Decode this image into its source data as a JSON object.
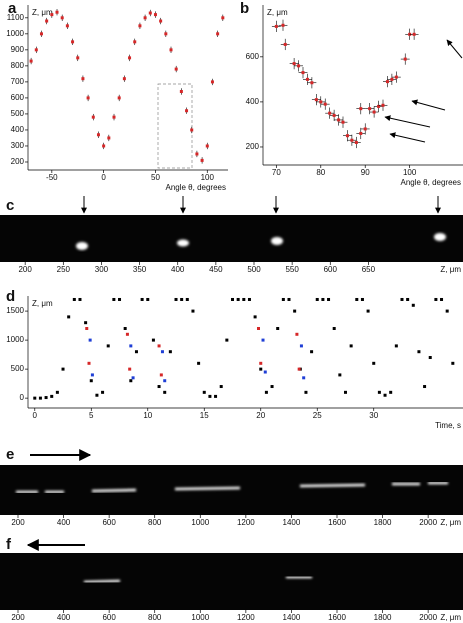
{
  "chart_data": [
    {
      "type": "scatter",
      "label": "a",
      "xlabel": "Angle θ, degrees",
      "ylabel": "Z, μm",
      "color": "#d62728",
      "x": [
        -70,
        -65,
        -60,
        -55,
        -50,
        -45,
        -40,
        -35,
        -30,
        -25,
        -20,
        -15,
        -10,
        -5,
        0,
        5,
        10,
        15,
        20,
        25,
        30,
        35,
        40,
        45,
        50,
        55,
        60,
        65,
        70,
        75,
        80,
        85,
        90,
        95,
        100,
        105,
        110,
        115
      ],
      "values": [
        830,
        900,
        1000,
        1080,
        1120,
        1135,
        1100,
        1050,
        950,
        850,
        720,
        600,
        480,
        370,
        300,
        350,
        480,
        600,
        720,
        850,
        950,
        1050,
        1100,
        1130,
        1120,
        1080,
        1000,
        900,
        780,
        640,
        520,
        400,
        250,
        210,
        300,
        700,
        1000,
        1100
      ],
      "yerr": 20,
      "xlim": [
        -73,
        120
      ],
      "ylim": [
        150,
        1180
      ],
      "xticks": [
        -50,
        0,
        50,
        100
      ],
      "yticks": [
        200,
        300,
        400,
        500,
        600,
        700,
        800,
        900,
        1000,
        1100
      ]
    },
    {
      "type": "scatter",
      "label": "b",
      "xlabel": "Angle θ, degrees",
      "ylabel": "Z, μm",
      "color": "#d62728",
      "x": [
        70,
        71.5,
        72,
        74,
        75,
        76,
        77,
        78,
        79,
        80,
        81,
        82,
        83,
        84,
        85,
        86,
        87,
        88,
        89,
        89,
        90,
        91,
        92,
        93,
        94,
        95,
        96,
        97,
        99,
        100,
        101
      ],
      "values": [
        735,
        740,
        655,
        570,
        560,
        530,
        500,
        485,
        410,
        400,
        390,
        350,
        340,
        320,
        310,
        250,
        230,
        220,
        370,
        260,
        280,
        370,
        355,
        380,
        385,
        490,
        500,
        510,
        590,
        700,
        700
      ],
      "yerr": 25,
      "xerr": 1,
      "xlim": [
        67,
        112
      ],
      "ylim": [
        120,
        830
      ],
      "xticks": [
        70,
        80,
        90,
        100
      ],
      "yticks": [
        200,
        400,
        600
      ]
    },
    {
      "type": "image",
      "label": "c",
      "xlabel": "Z, μm",
      "xlim": [
        167,
        774
      ],
      "xticks": [
        200,
        250,
        300,
        350,
        400,
        450,
        500,
        550,
        600,
        650
      ]
    },
    {
      "type": "scatter",
      "label": "d",
      "xlabel": "Time, s",
      "ylabel": "Z, μm",
      "series": [
        {
          "color": "#000000",
          "x": [
            0,
            0.5,
            1,
            1.5,
            2,
            2.5,
            3,
            3.5,
            4,
            4.5,
            5,
            5.5,
            6,
            6.5,
            7,
            7.5,
            8,
            8.5,
            9,
            9.5,
            10,
            10.5,
            11,
            11.5,
            12,
            12.5,
            13,
            13.5,
            14,
            14.5,
            15,
            15.5,
            16,
            16.5,
            17,
            17.5,
            18,
            18.5,
            19,
            19.5,
            20,
            20.5,
            21,
            21.5,
            22,
            22.5,
            23,
            23.5,
            24,
            24.5,
            25,
            25.5,
            26,
            26.5,
            27,
            27.5,
            28,
            28.5,
            29,
            29.5,
            30,
            30.5,
            31,
            31.5,
            32,
            32.5,
            33,
            33.5,
            34,
            34.5,
            35,
            35.5,
            36,
            36.5,
            37
          ],
          "values": [
            0,
            0,
            10,
            30,
            100,
            500,
            1400,
            1700,
            1700,
            1300,
            300,
            50,
            100,
            900,
            1700,
            1700,
            1200,
            300,
            800,
            1700,
            1700,
            1000,
            200,
            100,
            800,
            1700,
            1700,
            1700,
            1500,
            600,
            100,
            30,
            30,
            200,
            1000,
            1700,
            1700,
            1700,
            1700,
            1400,
            500,
            100,
            200,
            1200,
            1700,
            1700,
            1500,
            500,
            100,
            800,
            1700,
            1700,
            1700,
            1200,
            400,
            100,
            900,
            1700,
            1700,
            1500,
            600,
            100,
            50,
            100,
            900,
            1700,
            1700,
            1600,
            800,
            200,
            700,
            1700,
            1700,
            1500,
            600
          ]
        },
        {
          "color": "#d62728",
          "x": [
            4.6,
            4.8,
            8.2,
            8.4,
            11,
            11.2,
            19.8,
            20,
            23.2,
            23.4
          ],
          "values": [
            1200,
            600,
            1100,
            500,
            900,
            400,
            1200,
            600,
            1100,
            500
          ]
        },
        {
          "color": "#1f3fd6",
          "x": [
            4.9,
            5.1,
            8.5,
            8.7,
            11.3,
            11.5,
            20.2,
            20.4,
            23.6,
            23.8
          ],
          "values": [
            1000,
            400,
            900,
            350,
            800,
            300,
            1000,
            450,
            900,
            350
          ]
        }
      ],
      "xlim": [
        -0.6,
        37.9
      ],
      "ylim": [
        -170,
        1760
      ],
      "xticks": [
        0,
        5,
        10,
        15,
        20,
        25,
        30
      ],
      "yticks": [
        0,
        500,
        1000,
        1500
      ]
    },
    {
      "type": "image",
      "label": "e",
      "xlabel": "Z, μm",
      "xlim": [
        121,
        2153
      ],
      "xticks": [
        200,
        400,
        600,
        800,
        1000,
        1200,
        1400,
        1600,
        1800,
        2000
      ]
    },
    {
      "type": "image",
      "label": "f",
      "xlabel": "Z, μm",
      "xlim": [
        121,
        2153
      ],
      "xticks": [
        200,
        400,
        600,
        800,
        1000,
        1200,
        1400,
        1600,
        1800,
        2000
      ]
    }
  ]
}
